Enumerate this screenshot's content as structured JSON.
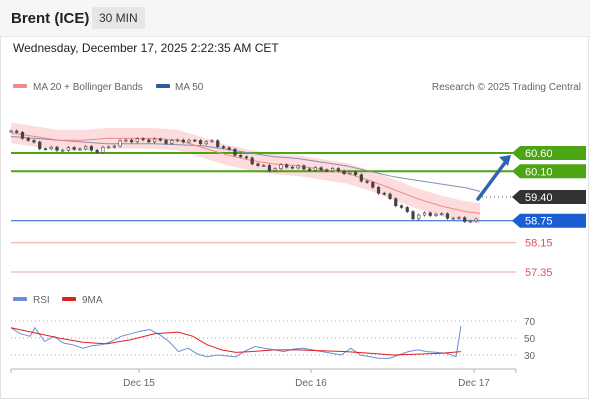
{
  "header": {
    "title": "Brent (ICE)",
    "timeframe": "30 MIN"
  },
  "datetime": "Wednesday, December 17, 2025 2:22:35 AM CET",
  "legend": {
    "bollinger": {
      "label": "MA 20 + Bollinger Bands",
      "color": "#f08a8a"
    },
    "ma50": {
      "label": "MA 50",
      "color": "#2e5c99"
    },
    "credit": "Research © 2025 Trading Central"
  },
  "rsi_legend": {
    "rsi": {
      "label": "RSI",
      "color": "#6b8fd4"
    },
    "ma9": {
      "label": "9MA",
      "color": "#e02020"
    }
  },
  "colors": {
    "green": "#4ca614",
    "blue": "#1a5fd1",
    "red": "#e05050",
    "dark": "#333333",
    "arrow": "#2f64b4"
  },
  "chart_data": [
    {
      "type": "line",
      "title": "Brent (ICE)",
      "x_ticks": [
        "Dec 15",
        "Dec 16",
        "Dec 17"
      ],
      "ylim": [
        57.0,
        61.1
      ],
      "levels": [
        {
          "value": 60.6,
          "label": "60.60",
          "style": "green-line",
          "badge": "green"
        },
        {
          "value": 60.1,
          "label": "60.10",
          "style": "green-line",
          "badge": "green"
        },
        {
          "value": 59.4,
          "label": "59.40",
          "style": "dotted",
          "badge": "dark"
        },
        {
          "value": 58.75,
          "label": "58.75",
          "style": "blue-line",
          "badge": "blue"
        },
        {
          "value": 58.15,
          "label": "58.15",
          "style": "red-line",
          "badge": "none"
        },
        {
          "value": 57.35,
          "label": "57.35",
          "style": "red-line",
          "badge": "none"
        }
      ],
      "series": [
        {
          "name": "MA 20 + Bollinger Bands",
          "x": [
            0,
            5,
            10,
            15,
            20,
            25,
            30,
            35,
            40,
            45,
            50,
            55,
            60,
            65,
            70,
            75,
            80,
            85,
            90,
            95,
            98
          ],
          "values": [
            61.15,
            61.05,
            60.95,
            60.95,
            61.0,
            61.0,
            61.0,
            60.95,
            60.75,
            60.55,
            60.4,
            60.3,
            60.25,
            60.15,
            60.05,
            59.85,
            59.6,
            59.35,
            59.15,
            59.0,
            58.95
          ]
        },
        {
          "name": "MA 50",
          "x": [
            0,
            10,
            20,
            30,
            40,
            45,
            50,
            55,
            60,
            65,
            70,
            75,
            80,
            85,
            90,
            95,
            98
          ],
          "values": [
            61.05,
            60.95,
            60.85,
            60.85,
            60.8,
            60.7,
            60.6,
            60.5,
            60.45,
            60.35,
            60.25,
            60.1,
            59.95,
            59.85,
            59.75,
            59.65,
            59.55
          ]
        }
      ],
      "close": {
        "x": [
          0,
          3,
          6,
          9,
          12,
          15,
          18,
          21,
          24,
          27,
          30,
          33,
          36,
          39,
          42,
          45,
          48,
          51,
          54,
          57,
          60,
          63,
          66,
          69,
          72,
          75,
          78,
          81,
          84,
          87,
          90,
          93,
          96,
          98
        ],
        "values": [
          61.2,
          61.0,
          60.75,
          60.7,
          60.7,
          60.75,
          60.65,
          60.8,
          60.95,
          60.95,
          60.95,
          60.9,
          60.95,
          60.9,
          60.9,
          60.7,
          60.5,
          60.3,
          60.15,
          60.25,
          60.2,
          60.15,
          60.15,
          60.1,
          60.0,
          59.7,
          59.45,
          59.15,
          58.85,
          58.95,
          58.9,
          58.8,
          58.75,
          58.75
        ]
      },
      "projection": {
        "from": 59.4,
        "to": 60.6
      }
    },
    {
      "type": "line",
      "ylim": [
        20,
        80
      ],
      "y_ticks": [
        30,
        50,
        70
      ],
      "series": [
        {
          "name": "RSI",
          "x": [
            0,
            2,
            4,
            5,
            7,
            9,
            11,
            13,
            15,
            17,
            19,
            21,
            23,
            25,
            27,
            29,
            31,
            33,
            35,
            37,
            39,
            41,
            43,
            45,
            47,
            49,
            51,
            53,
            55,
            57,
            59,
            61,
            63,
            65,
            67,
            69,
            71,
            73,
            75,
            77,
            79,
            81,
            83,
            85,
            87,
            89,
            91,
            93,
            94
          ],
          "values": [
            62,
            55,
            52,
            62,
            46,
            52,
            44,
            42,
            38,
            41,
            42,
            46,
            52,
            55,
            58,
            60,
            54,
            46,
            34,
            38,
            31,
            28,
            30,
            29,
            28,
            35,
            40,
            38,
            36,
            34,
            37,
            38,
            36,
            34,
            32,
            30,
            38,
            30,
            28,
            26,
            26,
            30,
            34,
            36,
            34,
            33,
            32,
            28,
            64
          ]
        },
        {
          "name": "9MA",
          "x": [
            0,
            5,
            10,
            15,
            20,
            25,
            30,
            35,
            38,
            41,
            44,
            47,
            50,
            55,
            60,
            65,
            70,
            75,
            80,
            85,
            90,
            94
          ],
          "values": [
            62,
            56,
            50,
            45,
            43,
            48,
            55,
            57,
            52,
            42,
            36,
            33,
            34,
            36,
            36,
            35,
            34,
            32,
            30,
            31,
            32,
            34
          ]
        }
      ]
    }
  ]
}
